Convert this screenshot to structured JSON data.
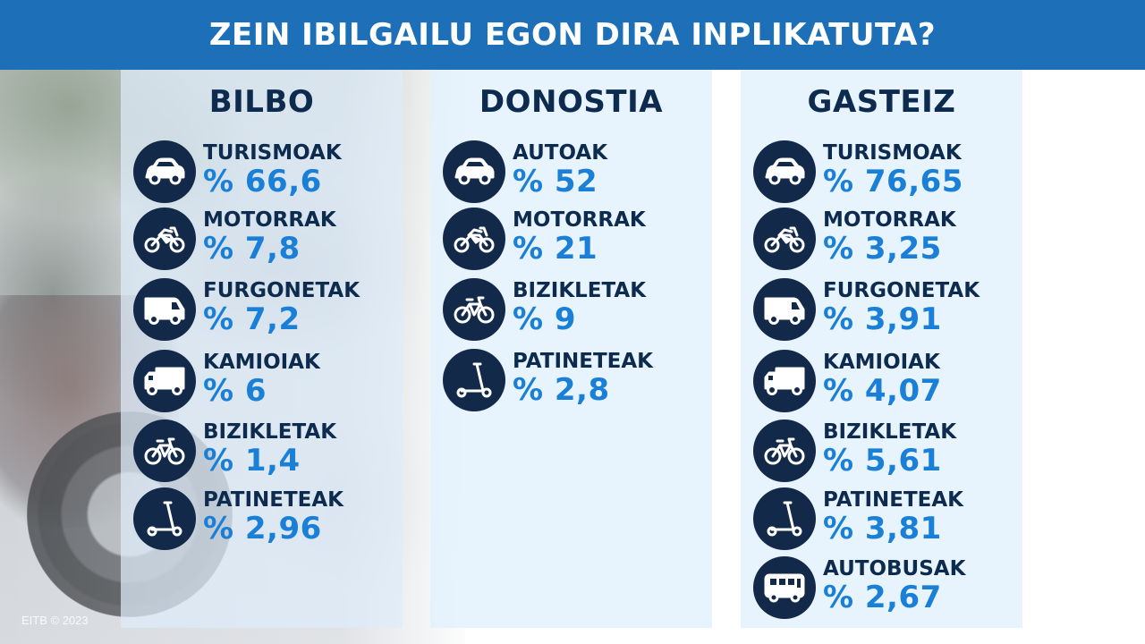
{
  "header": {
    "title": "ZEIN IBILGAILU EGON DIRA INPLIKATUTA?"
  },
  "copyright": "EITB © 2023",
  "colors": {
    "header_bg": "#1d6fb8",
    "title_text": "#0d2b4e",
    "value_text": "#1a7fd6",
    "icon_bg": "#12294a"
  },
  "columns": [
    {
      "title": "BILBO",
      "rows": [
        {
          "icon": "car-icon",
          "label": "TURISMOAK",
          "value": "% 66,6"
        },
        {
          "icon": "motorcycle-icon",
          "label": "MOTORRAK",
          "value": "% 7,8"
        },
        {
          "icon": "van-icon",
          "label": "FURGONETAK",
          "value": "% 7,2"
        },
        {
          "icon": "truck-icon",
          "label": "KAMIOIAK",
          "value": "% 6"
        },
        {
          "icon": "bicycle-icon",
          "label": "BIZIKLETAK",
          "value": "% 1,4"
        },
        {
          "icon": "scooter-icon",
          "label": "PATINETEAK",
          "value": "% 2,96"
        }
      ]
    },
    {
      "title": "DONOSTIA",
      "rows": [
        {
          "icon": "car-icon",
          "label": "AUTOAK",
          "value": "% 52"
        },
        {
          "icon": "motorcycle-icon",
          "label": "MOTORRAK",
          "value": "% 21"
        },
        {
          "icon": "bicycle-icon",
          "label": "BIZIKLETAK",
          "value": "% 9"
        },
        {
          "icon": "scooter-icon",
          "label": "PATINETEAK",
          "value": "% 2,8"
        }
      ]
    },
    {
      "title": "GASTEIZ",
      "rows": [
        {
          "icon": "car-icon",
          "label": "TURISMOAK",
          "value": "% 76,65"
        },
        {
          "icon": "motorcycle-icon",
          "label": "MOTORRAK",
          "value": "% 3,25"
        },
        {
          "icon": "van-icon",
          "label": "FURGONETAK",
          "value": "% 3,91"
        },
        {
          "icon": "truck-icon",
          "label": "KAMIOIAK",
          "value": "% 4,07"
        },
        {
          "icon": "bicycle-icon",
          "label": "BIZIKLETAK",
          "value": "% 5,61"
        },
        {
          "icon": "scooter-icon",
          "label": "PATINETEAK",
          "value": "% 3,81"
        },
        {
          "icon": "bus-icon",
          "label": "AUTOBUSAK",
          "value": "% 2,67"
        }
      ]
    }
  ]
}
